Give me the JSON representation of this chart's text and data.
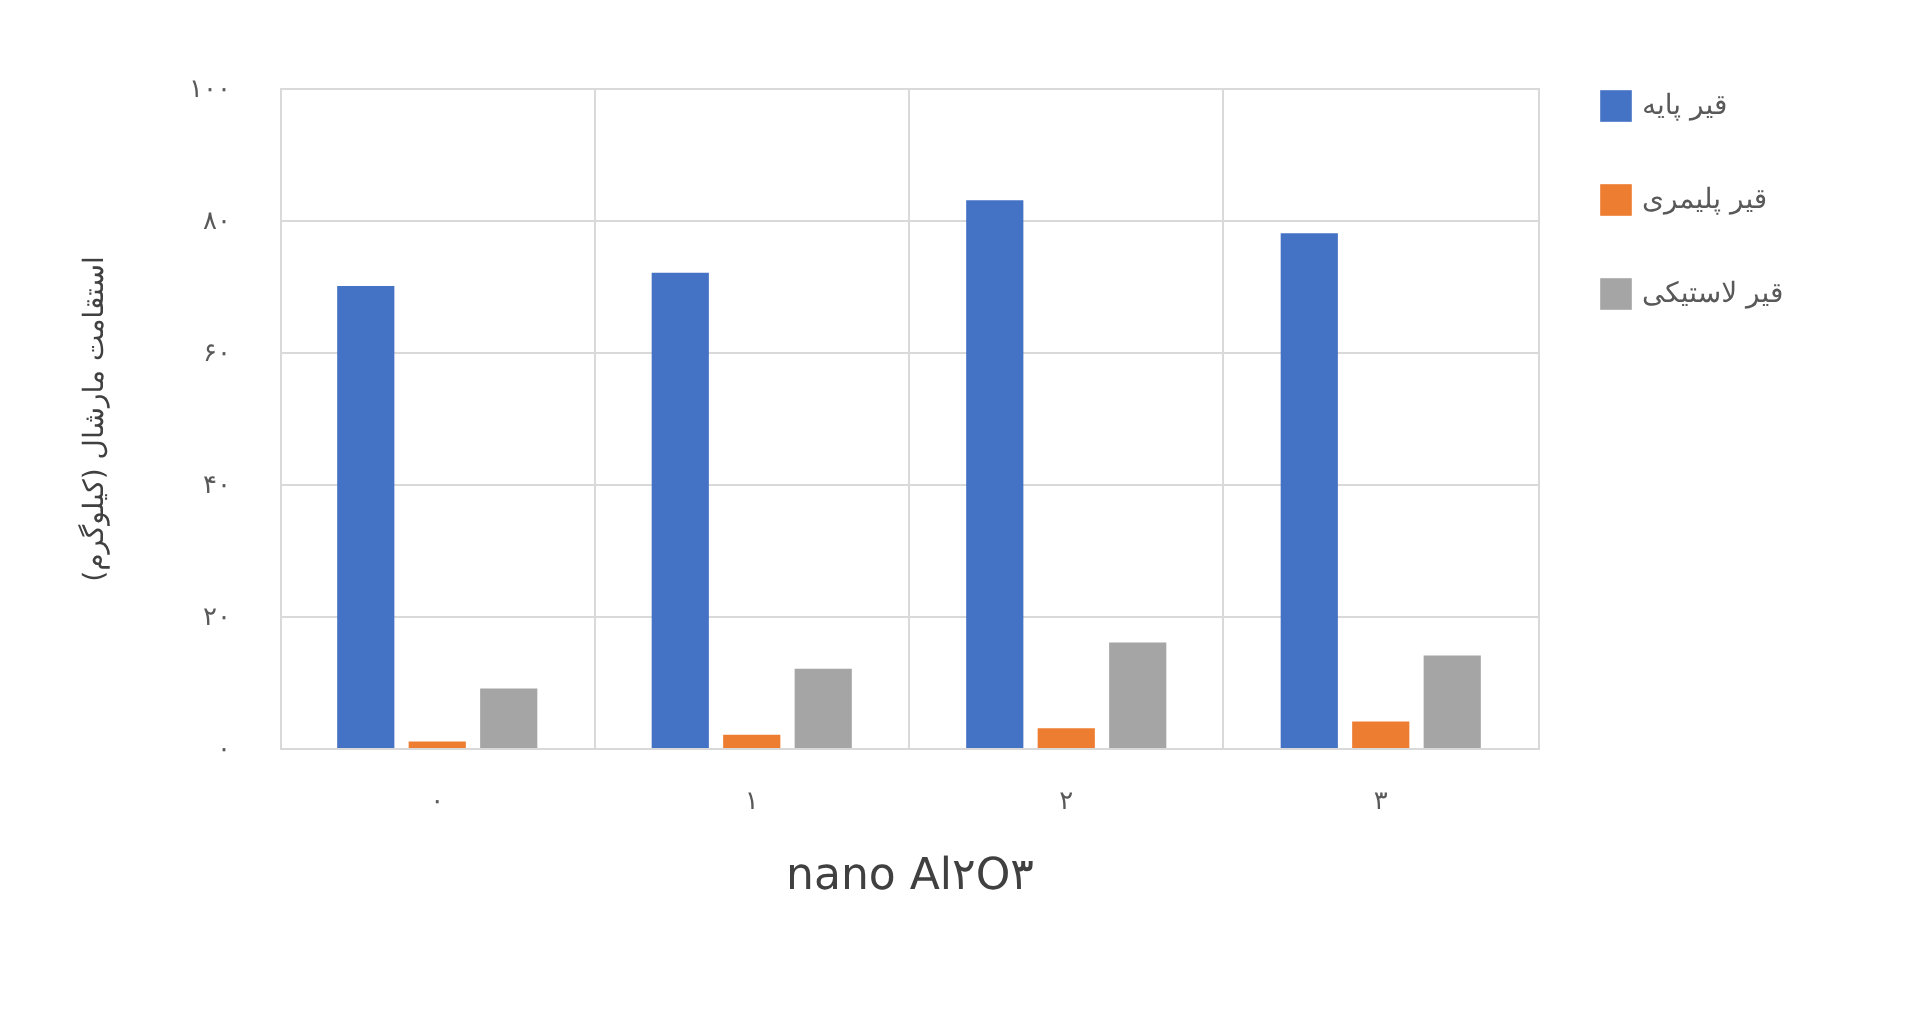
{
  "chart_data": {
    "type": "bar",
    "xlabel": "nano Al۲O۳",
    "ylabel": "استقامت مارشال (کیلوگرم)",
    "categories": [
      "۰",
      "۱",
      "۲",
      "۳"
    ],
    "series": [
      {
        "name": "قیر پایه",
        "color": "#4472c4",
        "values": [
          70,
          72,
          83,
          78
        ]
      },
      {
        "name": "قیر پلیمری",
        "color": "#ed7d31",
        "values": [
          1,
          2,
          3,
          4
        ]
      },
      {
        "name": "قیر لاستیکی",
        "color": "#a5a5a5",
        "values": [
          9,
          12,
          16,
          14
        ]
      }
    ],
    "ylim": [
      0,
      100
    ],
    "yticks": [
      {
        "value": 0,
        "label": "۰"
      },
      {
        "value": 20,
        "label": "۲۰"
      },
      {
        "value": 40,
        "label": "۴۰"
      },
      {
        "value": 60,
        "label": "۶۰"
      },
      {
        "value": 80,
        "label": "۸۰"
      },
      {
        "value": 100,
        "label": "۱۰۰"
      }
    ],
    "grid": true,
    "legend": "right"
  }
}
